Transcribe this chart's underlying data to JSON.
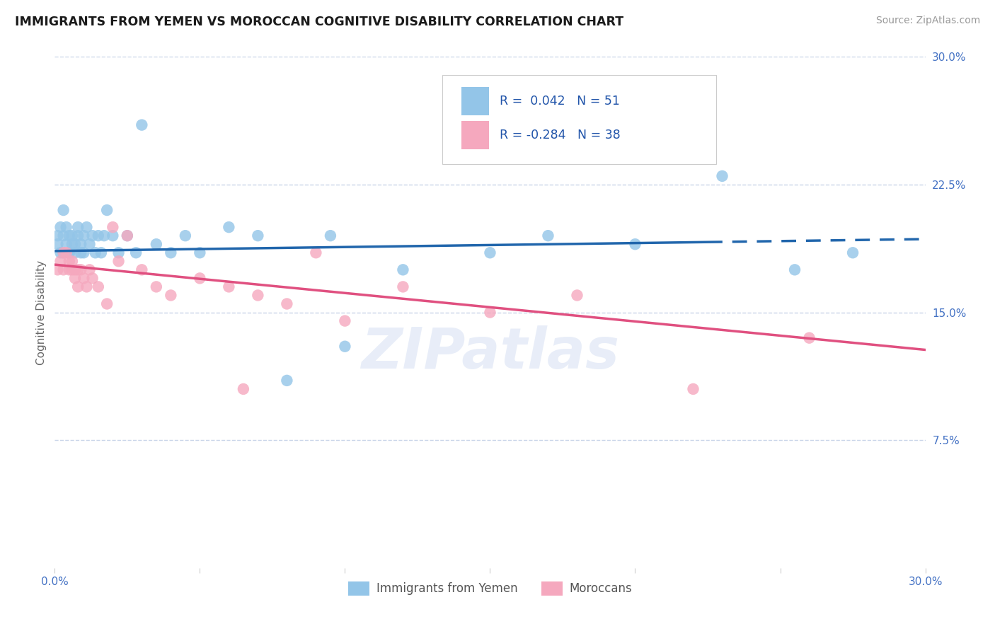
{
  "title": "IMMIGRANTS FROM YEMEN VS MOROCCAN COGNITIVE DISABILITY CORRELATION CHART",
  "source": "Source: ZipAtlas.com",
  "ylabel": "Cognitive Disability",
  "xlim": [
    0.0,
    0.3
  ],
  "ylim": [
    0.0,
    0.3
  ],
  "y_ticks_right": [
    0.075,
    0.15,
    0.225,
    0.3
  ],
  "y_tick_labels_right": [
    "7.5%",
    "15.0%",
    "22.5%",
    "30.0%"
  ],
  "grid_color": "#c8d4e8",
  "background_color": "#ffffff",
  "watermark": "ZIPatlas",
  "legend_r1": "R =  0.042",
  "legend_n1": "N = 51",
  "legend_r2": "R = -0.284",
  "legend_n2": "N = 38",
  "series1_color": "#93c5e8",
  "series2_color": "#f5a8be",
  "line1_color": "#2166ac",
  "line2_color": "#e05080",
  "legend_label1": "Immigrants from Yemen",
  "legend_label2": "Moroccans",
  "line1_x0": 0.0,
  "line1_y0": 0.186,
  "line1_x1": 0.3,
  "line1_y1": 0.193,
  "line1_solid_end": 0.225,
  "line2_x0": 0.0,
  "line2_y0": 0.178,
  "line2_x1": 0.3,
  "line2_y1": 0.128,
  "series1_x": [
    0.001,
    0.001,
    0.002,
    0.002,
    0.003,
    0.003,
    0.003,
    0.004,
    0.004,
    0.005,
    0.005,
    0.005,
    0.006,
    0.006,
    0.007,
    0.007,
    0.008,
    0.008,
    0.009,
    0.009,
    0.01,
    0.01,
    0.011,
    0.012,
    0.013,
    0.014,
    0.015,
    0.016,
    0.017,
    0.018,
    0.02,
    0.022,
    0.025,
    0.028,
    0.03,
    0.035,
    0.04,
    0.045,
    0.05,
    0.06,
    0.07,
    0.08,
    0.095,
    0.1,
    0.12,
    0.15,
    0.17,
    0.2,
    0.23,
    0.255,
    0.275
  ],
  "series1_y": [
    0.195,
    0.19,
    0.185,
    0.2,
    0.185,
    0.195,
    0.21,
    0.19,
    0.2,
    0.185,
    0.195,
    0.185,
    0.19,
    0.195,
    0.185,
    0.19,
    0.195,
    0.2,
    0.185,
    0.19,
    0.195,
    0.185,
    0.2,
    0.19,
    0.195,
    0.185,
    0.195,
    0.185,
    0.195,
    0.21,
    0.195,
    0.185,
    0.195,
    0.185,
    0.26,
    0.19,
    0.185,
    0.195,
    0.185,
    0.2,
    0.195,
    0.11,
    0.195,
    0.13,
    0.175,
    0.185,
    0.195,
    0.19,
    0.23,
    0.175,
    0.185
  ],
  "series2_x": [
    0.001,
    0.002,
    0.003,
    0.003,
    0.004,
    0.005,
    0.005,
    0.006,
    0.006,
    0.007,
    0.007,
    0.008,
    0.008,
    0.009,
    0.01,
    0.011,
    0.012,
    0.013,
    0.015,
    0.018,
    0.02,
    0.022,
    0.025,
    0.03,
    0.035,
    0.04,
    0.05,
    0.06,
    0.065,
    0.07,
    0.08,
    0.09,
    0.1,
    0.12,
    0.15,
    0.18,
    0.22,
    0.26
  ],
  "series2_y": [
    0.175,
    0.18,
    0.185,
    0.175,
    0.185,
    0.175,
    0.18,
    0.175,
    0.18,
    0.175,
    0.17,
    0.175,
    0.165,
    0.175,
    0.17,
    0.165,
    0.175,
    0.17,
    0.165,
    0.155,
    0.2,
    0.18,
    0.195,
    0.175,
    0.165,
    0.16,
    0.17,
    0.165,
    0.105,
    0.16,
    0.155,
    0.185,
    0.145,
    0.165,
    0.15,
    0.16,
    0.105,
    0.135
  ]
}
